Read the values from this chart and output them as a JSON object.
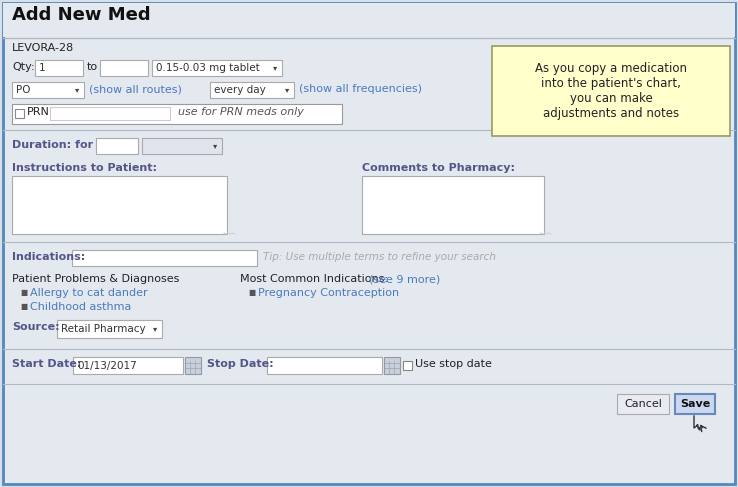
{
  "title": "Add New Med",
  "bg_color": "#d8dfe8",
  "panel_bg": "#e4e8ef",
  "white": "#ffffff",
  "border_color": "#aaaaaa",
  "outer_border": "#5588bb",
  "blue_text": "#4a7abf",
  "dark_text": "#222222",
  "bold_text": "#1a1a1a",
  "gray_text": "#aaaaaa",
  "label_color": "#555588",
  "note_bg": "#ffffcc",
  "note_border": "#999966",
  "note_text": "As you copy a medication\ninto the patient's chart,\nyou can make\nadjustments and notes",
  "med_name": "LEVORA-28",
  "qty_label": "Qty:",
  "qty_val": "1",
  "to_label": "to",
  "tablet_val": "0.15-0.03 mg tablet",
  "route_val": "PO",
  "show_routes": "(show all routes)",
  "freq_val": "every day",
  "show_freq": "(show all frequencies)",
  "prn_label": "PRN",
  "prn_note": "use for PRN meds only",
  "duration_label": "Duration: for",
  "instructions_label": "Instructions to Patient:",
  "comments_label": "Comments to Pharmacy:",
  "indications_label": "Indications:",
  "tip_text": "Tip: Use multiple terms to refine your search",
  "problems_label": "Patient Problems & Diagnoses",
  "problems": [
    "Allergy to cat dander",
    "Childhood asthma"
  ],
  "common_label": "Most Common Indications:",
  "see_more": "(see 9 more)",
  "common_items": [
    "Pregnancy Contraception"
  ],
  "source_label": "Source:",
  "source_val": "Retail Pharmacy",
  "start_label": "Start Date:",
  "start_val": "01/13/2017",
  "stop_label": "Stop Date:",
  "use_stop": "Use stop date",
  "cancel_btn": "Cancel",
  "save_btn": "Save",
  "sep_color": "#b0b8c8",
  "input_bg": "#f8f8f8",
  "dropdown_bg": "#e0e4ec",
  "btn_bg": "#e8ecf2",
  "save_bg": "#ccd8f0",
  "save_border": "#6688bb"
}
